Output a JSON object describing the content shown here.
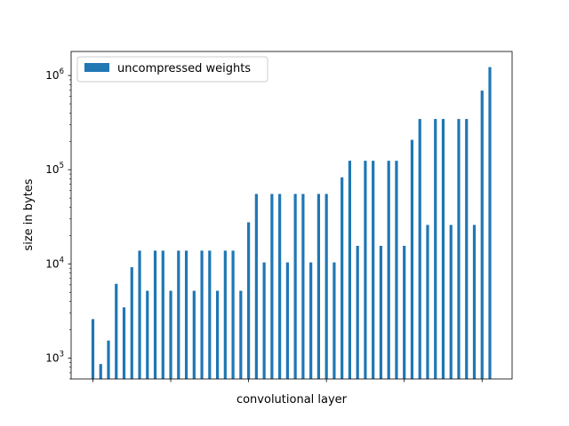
{
  "chart_data": {
    "type": "bar",
    "title": "",
    "xlabel": "convolutional layer",
    "ylabel": "size in bytes",
    "yscale": "log",
    "ylim": [
      600,
      1800000
    ],
    "y_ticks": [
      {
        "value": 1000,
        "base": "10",
        "exp": "3"
      },
      {
        "value": 10000,
        "base": "10",
        "exp": "4"
      },
      {
        "value": 100000,
        "base": "10",
        "exp": "5"
      },
      {
        "value": 1000000,
        "base": "10",
        "exp": "6"
      }
    ],
    "x_ticks_labeled": false,
    "grid": false,
    "legend": {
      "position": "top-left",
      "entries": [
        "uncompressed weights"
      ]
    },
    "series": [
      {
        "name": "uncompressed weights",
        "color": "#1f77b4",
        "values": [
          2592,
          864,
          1536,
          6144,
          3456,
          9216,
          13824,
          5184,
          13824,
          13824,
          5184,
          13824,
          13824,
          5184,
          13824,
          13824,
          5184,
          13824,
          13824,
          5184,
          27648,
          55296,
          10368,
          55296,
          55296,
          10368,
          55296,
          55296,
          10368,
          55296,
          55296,
          10368,
          82944,
          124416,
          15552,
          124416,
          124416,
          15552,
          124416,
          124416,
          15552,
          207360,
          345600,
          25920,
          345600,
          345600,
          25920,
          345600,
          345600,
          25920,
          691200,
          1228800
        ]
      }
    ]
  }
}
